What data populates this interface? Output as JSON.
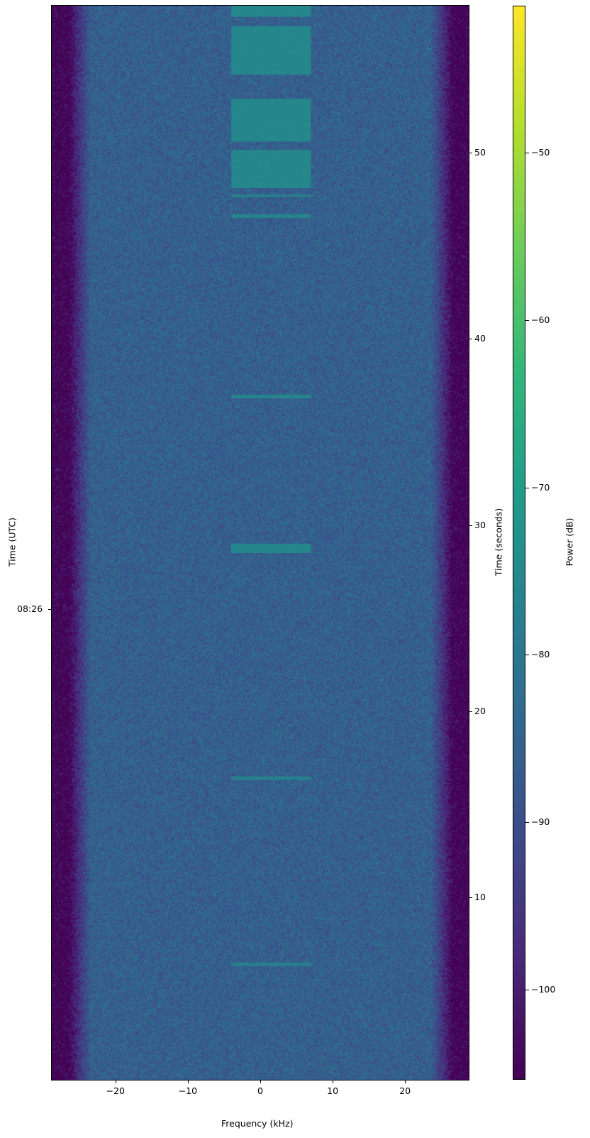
{
  "chart_data": {
    "type": "heatmap",
    "xlabel": "Frequency (kHz)",
    "ylabel_left": "Time (UTC)",
    "ylabel_right": "Time (seconds)",
    "colorbar_label": "Power (dB)",
    "colormap": "viridis",
    "xlim": [
      -28.8,
      28.8
    ],
    "ylim": [
      0.2,
      57.9
    ],
    "clim": [
      -105.4,
      -41.2
    ],
    "x_ticks": [
      -20,
      -10,
      0,
      10,
      20
    ],
    "x_tick_labels": [
      "−20",
      "−10",
      "0",
      "10",
      "20"
    ],
    "y_right_ticks": [
      10,
      20,
      30,
      40,
      50
    ],
    "y_right_tick_labels": [
      "10",
      "20",
      "30",
      "40",
      "50"
    ],
    "y_left_ticks": [
      {
        "label": "08:26",
        "seconds": 25.5
      }
    ],
    "colorbar_ticks": [
      -50,
      -60,
      -70,
      -80,
      -90,
      -100
    ],
    "colorbar_tick_labels": [
      "−50",
      "−60",
      "−70",
      "−80",
      "−90",
      "−100"
    ],
    "noise_floor_db": -86,
    "band_edge_khz": 26.5,
    "signal_bursts": [
      {
        "t_start": 57.3,
        "t_end": 57.9,
        "f_low": -4,
        "f_high": 7,
        "power_db": -73
      },
      {
        "t_start": 54.2,
        "t_end": 56.8,
        "f_low": -4,
        "f_high": 7,
        "power_db": -73
      },
      {
        "t_start": 50.6,
        "t_end": 52.9,
        "f_low": -4,
        "f_high": 7,
        "power_db": -73
      },
      {
        "t_start": 48.1,
        "t_end": 50.15,
        "f_low": -4,
        "f_high": 7,
        "power_db": -73
      },
      {
        "t_start": 47.65,
        "t_end": 47.75,
        "f_low": -4,
        "f_high": 7,
        "power_db": -74
      },
      {
        "t_start": 46.5,
        "t_end": 46.7,
        "f_low": -4,
        "f_high": 7,
        "power_db": -74
      },
      {
        "t_start": 36.8,
        "t_end": 37.0,
        "f_low": -4,
        "f_high": 7,
        "power_db": -74
      },
      {
        "t_start": 28.5,
        "t_end": 29.0,
        "f_low": -4,
        "f_high": 7,
        "power_db": -73
      },
      {
        "t_start": 16.3,
        "t_end": 16.5,
        "f_low": -4,
        "f_high": 7,
        "power_db": -75
      },
      {
        "t_start": 6.3,
        "t_end": 6.5,
        "f_low": -4,
        "f_high": 7,
        "power_db": -76
      }
    ]
  }
}
